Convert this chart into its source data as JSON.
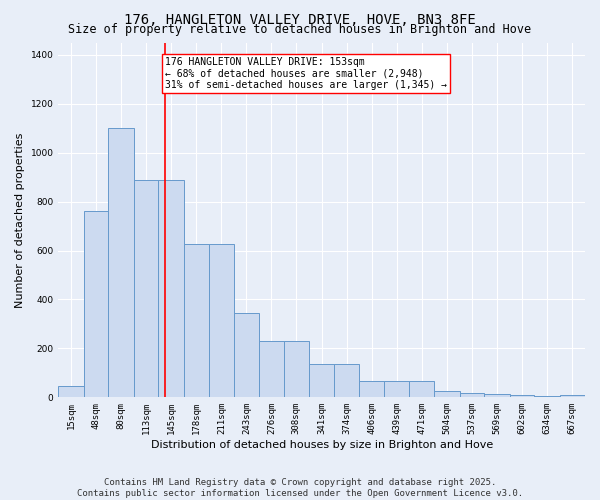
{
  "title": "176, HANGLETON VALLEY DRIVE, HOVE, BN3 8FE",
  "subtitle": "Size of property relative to detached houses in Brighton and Hove",
  "xlabel": "Distribution of detached houses by size in Brighton and Hove",
  "ylabel": "Number of detached properties",
  "bar_values": [
    47,
    760,
    1100,
    890,
    890,
    625,
    625,
    345,
    230,
    230,
    135,
    135,
    65,
    65,
    65,
    27,
    17,
    13,
    10,
    5,
    10
  ],
  "bin_edges": [
    15,
    48,
    80,
    113,
    145,
    178,
    211,
    243,
    276,
    308,
    341,
    374,
    406,
    439,
    471,
    504,
    537,
    569,
    602,
    634,
    667
  ],
  "tick_labels": [
    "15sqm",
    "48sqm",
    "80sqm",
    "113sqm",
    "145sqm",
    "178sqm",
    "211sqm",
    "243sqm",
    "276sqm",
    "308sqm",
    "341sqm",
    "374sqm",
    "406sqm",
    "439sqm",
    "471sqm",
    "504sqm",
    "537sqm",
    "569sqm",
    "602sqm",
    "634sqm",
    "667sqm"
  ],
  "bar_color": "#ccdaf0",
  "bar_edge_color": "#6699cc",
  "vline_x": 153,
  "vline_color": "red",
  "annotation_text": "176 HANGLETON VALLEY DRIVE: 153sqm\n← 68% of detached houses are smaller (2,948)\n31% of semi-detached houses are larger (1,345) →",
  "annotation_box_color": "white",
  "annotation_box_edge": "red",
  "ylim": [
    0,
    1450
  ],
  "yticks": [
    0,
    200,
    400,
    600,
    800,
    1000,
    1200,
    1400
  ],
  "background_color": "#e8eef8",
  "grid_color": "white",
  "footer": "Contains HM Land Registry data © Crown copyright and database right 2025.\nContains public sector information licensed under the Open Government Licence v3.0.",
  "title_fontsize": 10,
  "subtitle_fontsize": 8.5,
  "xlabel_fontsize": 8,
  "ylabel_fontsize": 8,
  "tick_fontsize": 6.5,
  "footer_fontsize": 6.5,
  "annotation_fontsize": 7
}
